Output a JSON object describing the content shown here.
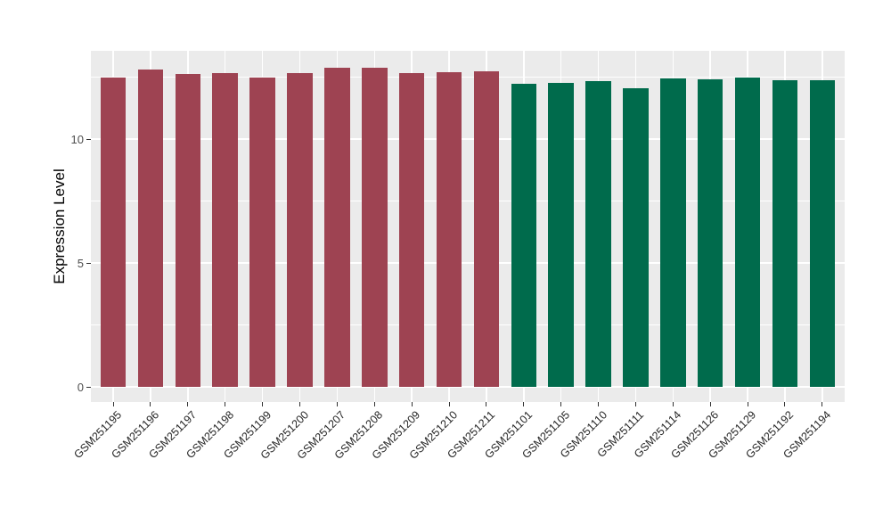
{
  "chart_data": {
    "type": "bar",
    "title": "",
    "xlabel": "",
    "ylabel": "Expression Level",
    "ylim": [
      -0.6,
      13.55
    ],
    "yticks": [
      0,
      5,
      10
    ],
    "yticks_minor": [
      2.5,
      7.5,
      12.5
    ],
    "grid": true,
    "legend_position": "none",
    "panel_background": "#EBEBEB",
    "grid_color": "#FFFFFF",
    "tick_color": "#333333",
    "axis_text_color": "#4D4D4D",
    "group_colors": {
      "left_group": "#9E4352",
      "right_group": "#006B4C"
    },
    "bars": [
      {
        "label": "GSM251195",
        "value": 12.5,
        "color": "#9E4352"
      },
      {
        "label": "GSM251196",
        "value": 12.8,
        "color": "#9E4352"
      },
      {
        "label": "GSM251197",
        "value": 12.64,
        "color": "#9E4352"
      },
      {
        "label": "GSM251198",
        "value": 12.67,
        "color": "#9E4352"
      },
      {
        "label": "GSM251199",
        "value": 12.5,
        "color": "#9E4352"
      },
      {
        "label": "GSM251200",
        "value": 12.67,
        "color": "#9E4352"
      },
      {
        "label": "GSM251207",
        "value": 12.88,
        "color": "#9E4352"
      },
      {
        "label": "GSM251208",
        "value": 12.87,
        "color": "#9E4352"
      },
      {
        "label": "GSM251209",
        "value": 12.66,
        "color": "#9E4352"
      },
      {
        "label": "GSM251210",
        "value": 12.7,
        "color": "#9E4352"
      },
      {
        "label": "GSM251211",
        "value": 12.73,
        "color": "#9E4352"
      },
      {
        "label": "GSM251101",
        "value": 12.22,
        "color": "#006B4C"
      },
      {
        "label": "GSM251105",
        "value": 12.26,
        "color": "#006B4C"
      },
      {
        "label": "GSM251110",
        "value": 12.34,
        "color": "#006B4C"
      },
      {
        "label": "GSM251111",
        "value": 12.05,
        "color": "#006B4C"
      },
      {
        "label": "GSM251114",
        "value": 12.46,
        "color": "#006B4C"
      },
      {
        "label": "GSM251126",
        "value": 12.42,
        "color": "#006B4C"
      },
      {
        "label": "GSM251129",
        "value": 12.5,
        "color": "#006B4C"
      },
      {
        "label": "GSM251192",
        "value": 12.36,
        "color": "#006B4C"
      },
      {
        "label": "GSM251194",
        "value": 12.38,
        "color": "#006B4C"
      }
    ]
  }
}
